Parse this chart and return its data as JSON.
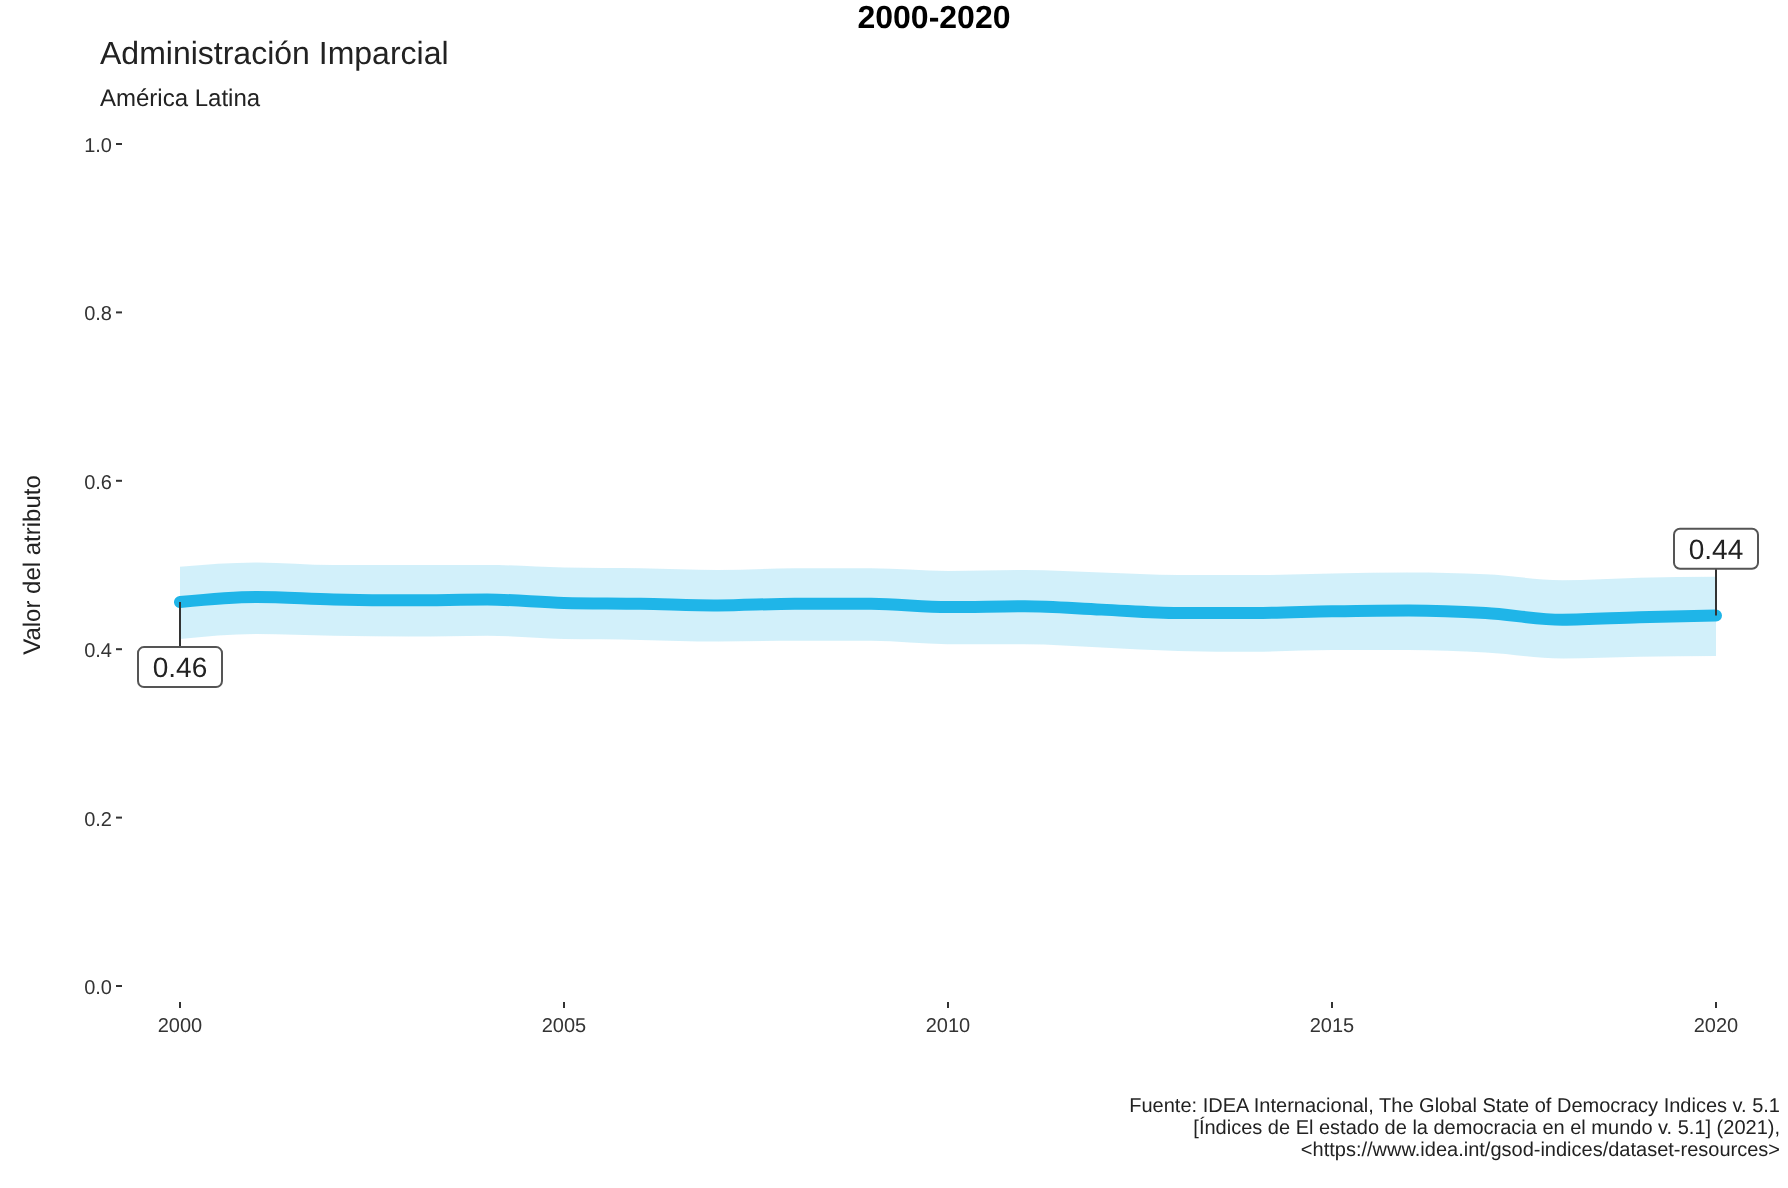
{
  "chart_data": {
    "type": "line",
    "title": "Administración Imparcial",
    "subtitle": "América Latina",
    "ylabel": "Valor del atributo",
    "annotations": [
      "2000-2020",
      "Fuente: IDEA Internacional, The Global State of Democracy Indices v. 5.1\n[Índices de El estado de la democracia en el mundo v. 5.1] (2021),\n<https://www.idea.int/gsod-indices/dataset-resources>"
    ],
    "x": [
      2000,
      2001,
      2002,
      2003,
      2004,
      2005,
      2006,
      2007,
      2008,
      2009,
      2010,
      2011,
      2012,
      2013,
      2014,
      2015,
      2016,
      2017,
      2018,
      2019,
      2020
    ],
    "series": [
      {
        "color": "#1fb5e8",
        "values": [
          0.456,
          0.462,
          0.459,
          0.458,
          0.459,
          0.455,
          0.454,
          0.452,
          0.454,
          0.454,
          0.45,
          0.451,
          0.447,
          0.443,
          0.443,
          0.445,
          0.446,
          0.443,
          0.435,
          0.438,
          0.44
        ],
        "lower": [
          0.412,
          0.418,
          0.416,
          0.415,
          0.416,
          0.412,
          0.411,
          0.409,
          0.41,
          0.41,
          0.406,
          0.406,
          0.402,
          0.398,
          0.397,
          0.399,
          0.399,
          0.396,
          0.389,
          0.391,
          0.392
        ],
        "upper": [
          0.498,
          0.503,
          0.5,
          0.5,
          0.5,
          0.497,
          0.496,
          0.494,
          0.496,
          0.496,
          0.493,
          0.494,
          0.491,
          0.488,
          0.488,
          0.49,
          0.491,
          0.489,
          0.482,
          0.485,
          0.486
        ],
        "value_labels": [
          "0.46",
          null,
          null,
          null,
          null,
          null,
          null,
          null,
          null,
          null,
          null,
          null,
          null,
          null,
          null,
          null,
          null,
          null,
          null,
          null,
          "0.44"
        ]
      }
    ],
    "xlim": [
      2000,
      2020
    ],
    "xticks": [
      2000,
      2005,
      2010,
      2015,
      2020
    ],
    "ylim": [
      0,
      1
    ],
    "yticks": [
      {
        "value": 0,
        "label": "0.0"
      },
      {
        "value": 0.2,
        "label": "0.2"
      },
      {
        "value": 0.4,
        "label": "0.4"
      },
      {
        "value": 0.6,
        "label": "0.6"
      },
      {
        "value": 0.8,
        "label": "0.8"
      },
      {
        "value": 1,
        "label": "1.0"
      }
    ],
    "grid": false,
    "line_style": "solid",
    "marker": "none"
  }
}
